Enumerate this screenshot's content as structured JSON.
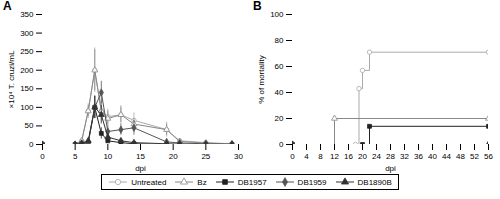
{
  "chart_data": [
    {
      "type": "line",
      "title": "A",
      "xlabel": "dpi",
      "ylabel": "×10⁴ T. cruzi/mL",
      "xlim": [
        0,
        30
      ],
      "ylim": [
        0,
        350
      ],
      "xticks": [
        0,
        5,
        10,
        15,
        20,
        25,
        30
      ],
      "yticks": [
        0,
        50,
        100,
        150,
        200,
        250,
        300,
        350
      ],
      "legend": "bottom",
      "x": [
        0,
        5,
        6,
        7,
        8,
        9,
        10,
        12,
        14,
        19,
        21,
        25,
        29
      ],
      "series": [
        {
          "name": "Untreated",
          "color": "#aaaaaa",
          "marker": "circle-open",
          "values": [
            0,
            0,
            10,
            90,
            200,
            90,
            75,
            80,
            65,
            40,
            10,
            5,
            2
          ],
          "yerr": [
            0,
            0,
            5,
            20,
            60,
            30,
            20,
            25,
            20,
            20,
            5,
            3,
            1
          ]
        },
        {
          "name": "Bz",
          "color": "#888888",
          "marker": "triangle-open",
          "values": [
            0,
            0,
            10,
            90,
            200,
            90,
            70,
            80,
            55,
            40,
            8,
            4,
            1
          ],
          "yerr": [
            0,
            0,
            5,
            15,
            55,
            25,
            20,
            20,
            15,
            15,
            4,
            2,
            1
          ]
        },
        {
          "name": "DB1957",
          "color": "#222222",
          "marker": "square",
          "values": [
            0,
            0,
            2,
            5,
            100,
            30,
            10,
            5,
            2,
            0,
            0,
            0,
            0
          ],
          "yerr": [
            0,
            0,
            1,
            2,
            30,
            15,
            5,
            3,
            1,
            0,
            0,
            0,
            0
          ]
        },
        {
          "name": "DB1959",
          "color": "#555555",
          "marker": "diamond",
          "values": [
            0,
            0,
            3,
            5,
            100,
            140,
            35,
            40,
            45,
            7,
            4,
            2,
            1
          ],
          "yerr": [
            0,
            0,
            1,
            2,
            30,
            30,
            15,
            15,
            20,
            5,
            3,
            2,
            1
          ]
        },
        {
          "name": "DB1890B",
          "color": "#333333",
          "marker": "triangle",
          "values": [
            0,
            0,
            3,
            10,
            100,
            80,
            20,
            10,
            5,
            2,
            1,
            0,
            0
          ],
          "yerr": [
            0,
            0,
            1,
            5,
            30,
            25,
            10,
            5,
            3,
            2,
            1,
            0,
            0
          ]
        }
      ]
    },
    {
      "type": "step",
      "title": "B",
      "xlabel": "dpi",
      "ylabel": "% of mortality",
      "xlim": [
        0,
        56
      ],
      "ylim": [
        0,
        100
      ],
      "xticks": [
        0,
        4,
        8,
        12,
        16,
        20,
        24,
        28,
        32,
        36,
        40,
        44,
        48,
        52,
        56
      ],
      "yticks": [
        0,
        20,
        40,
        60,
        80,
        100
      ],
      "series": [
        {
          "name": "Untreated",
          "color": "#aaaaaa",
          "marker": "circle-open",
          "x": [
            0,
            18,
            19,
            20,
            22,
            56
          ],
          "values": [
            0,
            0,
            43,
            57,
            71,
            71
          ]
        },
        {
          "name": "Bz",
          "color": "#888888",
          "marker": "triangle-open",
          "x": [
            0,
            12,
            56
          ],
          "values": [
            0,
            20,
            20
          ]
        },
        {
          "name": "DB1957",
          "color": "#222222",
          "marker": "square",
          "x": [
            0,
            20,
            22,
            56
          ],
          "values": [
            0,
            0,
            14,
            14
          ]
        },
        {
          "name": "DB1959",
          "color": "#555555",
          "marker": "diamond",
          "x": [
            0,
            56
          ],
          "values": [
            0,
            0
          ]
        },
        {
          "name": "DB1890B",
          "color": "#333333",
          "marker": "triangle",
          "x": [
            0,
            56
          ],
          "values": [
            0,
            0
          ]
        }
      ]
    }
  ]
}
